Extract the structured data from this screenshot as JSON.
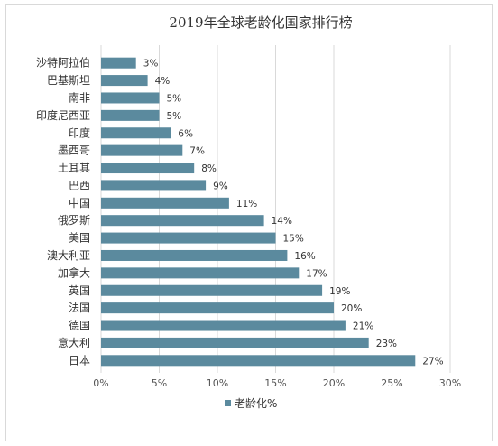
{
  "chart_data": {
    "type": "bar",
    "orientation": "horizontal",
    "title": "2019年全球老龄化国家排行榜",
    "categories": [
      "沙特阿拉伯",
      "巴基斯坦",
      "南非",
      "印度尼西亚",
      "印度",
      "墨西哥",
      "土耳其",
      "巴西",
      "中国",
      "俄罗斯",
      "美国",
      "澳大利亚",
      "加拿大",
      "英国",
      "法国",
      "德国",
      "意大利",
      "日本"
    ],
    "series": [
      {
        "name": "老龄化%",
        "values": [
          3,
          4,
          5,
          5,
          6,
          7,
          8,
          9,
          11,
          14,
          15,
          16,
          17,
          19,
          20,
          21,
          23,
          27
        ],
        "value_labels": [
          "3%",
          "4%",
          "5%",
          "5%",
          "6%",
          "7%",
          "8%",
          "9%",
          "11%",
          "14%",
          "15%",
          "16%",
          "17%",
          "19%",
          "20%",
          "21%",
          "23%",
          "27%"
        ]
      }
    ],
    "x_ticks": [
      "0%",
      "5%",
      "10%",
      "15%",
      "20%",
      "25%",
      "30%"
    ],
    "xlim": [
      0,
      30
    ],
    "xlabel": "",
    "ylabel": "",
    "grid": true,
    "legend_position": "bottom",
    "colors": {
      "bar": "#5b8a9e",
      "grid": "#d9d9d9",
      "text": "#333333"
    }
  }
}
